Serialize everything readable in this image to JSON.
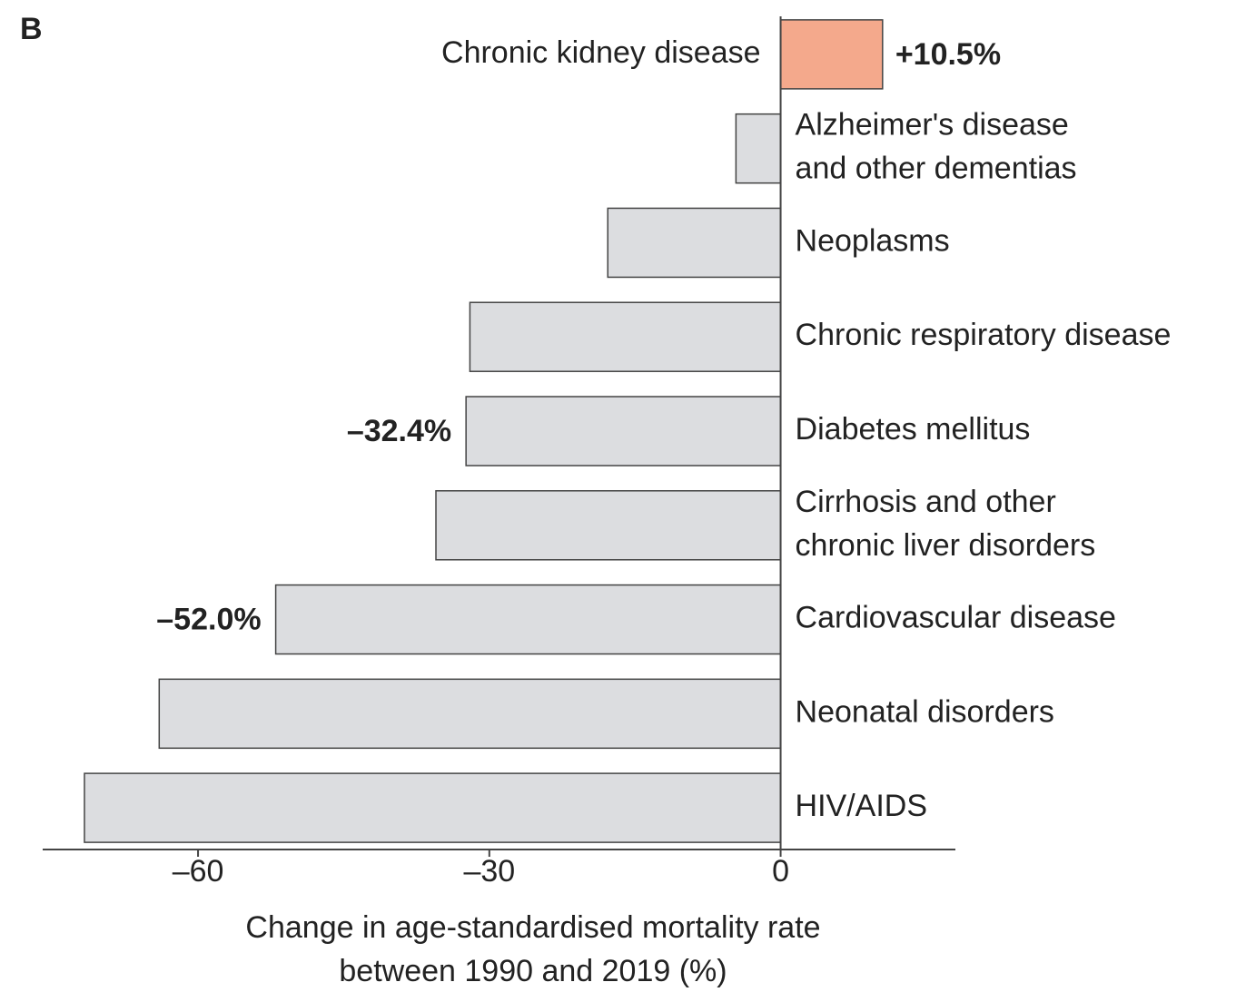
{
  "chart_data": {
    "type": "barh",
    "panel_label": "B",
    "categories": [
      [
        "Chronic kidney disease"
      ],
      [
        "Alzheimer's disease",
        "and other dementias"
      ],
      [
        "Neoplasms"
      ],
      [
        "Chronic respiratory disease"
      ],
      [
        "Diabetes mellitus"
      ],
      [
        "Cirrhosis and other",
        "chronic liver disorders"
      ],
      [
        "Cardiovascular disease"
      ],
      [
        "Neonatal disorders"
      ],
      [
        "HIV/AIDS"
      ]
    ],
    "values": [
      10.5,
      -4.6,
      -17.8,
      -32.0,
      -32.4,
      -35.5,
      -52.0,
      -64.0,
      -71.7
    ],
    "value_labels": [
      "+10.5%",
      null,
      null,
      null,
      "–32.4%",
      null,
      "–52.0%",
      null,
      null
    ],
    "colors": [
      "#f4a98c",
      "#dcdde0",
      "#dcdde0",
      "#dcdde0",
      "#dcdde0",
      "#dcdde0",
      "#dcdde0",
      "#dcdde0",
      "#dcdde0"
    ],
    "xlim": [
      -76,
      18
    ],
    "xticks": [
      {
        "value": -60,
        "label": "–60"
      },
      {
        "value": -30,
        "label": "–30"
      },
      0
    ],
    "x_label": [
      "Change in age-standardised mortality rate",
      "between 1990 and 2019 (%)"
    ]
  }
}
